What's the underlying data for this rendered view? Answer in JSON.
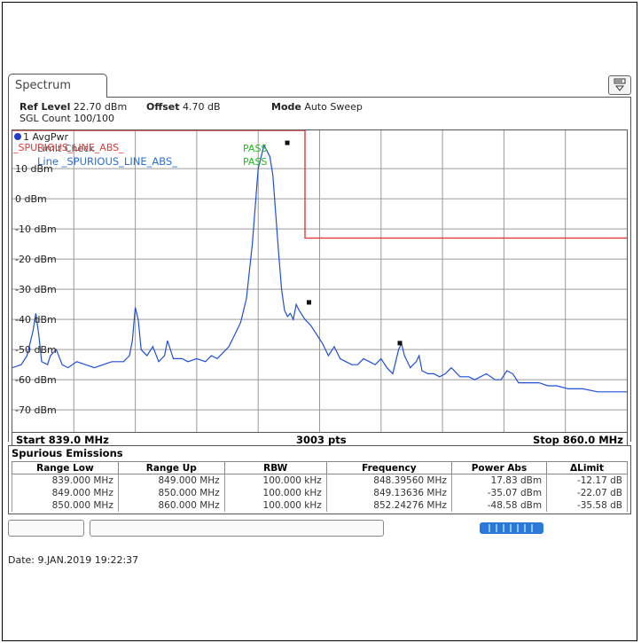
{
  "window": {
    "tab_label": "Spectrum"
  },
  "settings": {
    "ref_level_label": "Ref Level",
    "ref_level_value": "22.70 dBm",
    "offset_label": "Offset",
    "offset_value": "4.70 dB",
    "mode_label": "Mode",
    "mode_value": "Auto Sweep",
    "sgl_count": "SGL Count 100/100"
  },
  "trace": {
    "legend": "1 AvgPwr",
    "color": "#1f4fd8"
  },
  "limit_check": {
    "label": "Limit Check",
    "line_label_red": "_SPURIOUS_LINE_ABS_",
    "line_label_blue": "Line _SPURIOUS_LINE_ABS_",
    "result_1": "PASS",
    "result_2": "PASS",
    "limit_color": "#e23a3a",
    "pass_color": "#22bb22"
  },
  "chart_data": {
    "type": "line",
    "title": "",
    "xlabel": "",
    "ylabel": "",
    "xlim": [
      839.0,
      860.0
    ],
    "ylim": [
      -77.3,
      22.7
    ],
    "y_ticks": [
      10,
      0,
      -10,
      -20,
      -30,
      -40,
      -50,
      -60,
      -70
    ],
    "y_tick_labels": [
      "10 dBm",
      "0 dBm",
      "-10 dBm",
      "-20 dBm",
      "-30 dBm",
      "-40 dBm",
      "-50 dBm",
      "-60 dBm",
      "-70 dBm"
    ],
    "grid": true,
    "series": [
      {
        "x": [
          839.0,
          839.3,
          839.5,
          839.7,
          839.8,
          839.9,
          840.0,
          840.2,
          840.3,
          840.5,
          840.7,
          840.9,
          841.2,
          841.5,
          841.8,
          842.1,
          842.4,
          842.6,
          842.8,
          843.0,
          843.1,
          843.2,
          843.3,
          843.4,
          843.6,
          843.8,
          844.0,
          844.2,
          844.3,
          844.5,
          844.8,
          845.0,
          845.3,
          845.6,
          845.8,
          846.0,
          846.2,
          846.4,
          846.6,
          846.8,
          847.0,
          847.2,
          847.4,
          847.6,
          847.8,
          847.9,
          848.0,
          848.1,
          848.2,
          848.3,
          848.4,
          848.5,
          848.6,
          848.7,
          848.8,
          849.0,
          849.2,
          849.4,
          849.6,
          849.8,
          850.0,
          850.2,
          850.4,
          850.6,
          850.8,
          851.0,
          851.2,
          851.4,
          851.6,
          851.8,
          852.0,
          852.1,
          852.2,
          852.3,
          852.4,
          852.6,
          852.8,
          852.9,
          853.0,
          853.2,
          853.4,
          853.6,
          853.8,
          854.0,
          854.3,
          854.6,
          854.8,
          855.0,
          855.2,
          855.5,
          855.7,
          855.9,
          856.1,
          856.3,
          856.5,
          856.8,
          857.0,
          857.3,
          857.6,
          858.0,
          858.5,
          859.0,
          859.5,
          860.0
        ],
        "y": [
          -56,
          -55,
          -52,
          -44,
          -38,
          -45,
          -54,
          -55,
          -52,
          -50,
          -55,
          -56,
          -54,
          -55,
          -56,
          -55,
          -54,
          -54,
          -54,
          -52,
          -47,
          -36,
          -40,
          -50,
          -52,
          -49,
          -54,
          -52,
          -47,
          -53,
          -53,
          -54,
          -53,
          -54,
          -52,
          -53,
          -51,
          -49,
          -45,
          -41,
          -33,
          -15,
          10,
          17.8,
          14,
          8,
          -5,
          -18,
          -30,
          -37,
          -39,
          -38,
          -40,
          -35,
          -37,
          -40,
          -42,
          -45,
          -48,
          -52,
          -49,
          -53,
          -54,
          -55,
          -55,
          -53,
          -54,
          -55,
          -53,
          -56,
          -58,
          -54,
          -50,
          -48,
          -52,
          -56,
          -54,
          -52,
          -57,
          -58,
          -58,
          -59,
          -58,
          -56,
          -59,
          -59,
          -60,
          -59,
          -58,
          -60,
          -60,
          -57,
          -58,
          -61,
          -61,
          -61,
          -61,
          -62,
          -62,
          -63,
          -63,
          -64,
          -64,
          -64
        ]
      }
    ],
    "markers": [
      {
        "x": 848.3956,
        "y": 17.83
      },
      {
        "x": 849.13636,
        "y": -35.07
      },
      {
        "x": 852.24276,
        "y": -48.58
      }
    ],
    "limit_line": {
      "x": [
        839.0,
        849.0,
        849.0,
        860.0
      ],
      "y": [
        22.7,
        22.7,
        -13.0,
        -13.0
      ]
    },
    "x_start_label": "Start 839.0 MHz",
    "x_center_label": "3003 pts",
    "x_stop_label": "Stop 860.0 MHz"
  },
  "spurious": {
    "title": "Spurious Emissions",
    "columns": [
      "Range Low",
      "Range Up",
      "RBW",
      "Frequency",
      "Power Abs",
      "ΔLimit"
    ],
    "rows": [
      [
        "839.000 MHz",
        "849.000 MHz",
        "100.000 kHz",
        "848.39560 MHz",
        "17.83 dBm",
        "-12.17 dB"
      ],
      [
        "849.000 MHz",
        "850.000 MHz",
        "100.000 kHz",
        "849.13636 MHz",
        "-35.07 dBm",
        "-22.07 dB"
      ],
      [
        "850.000 MHz",
        "860.000 MHz",
        "100.000 kHz",
        "852.24276 MHz",
        "-48.58 dBm",
        "-35.58 dB"
      ]
    ]
  },
  "footer": {
    "date": "Date: 9.JAN.2019  19:22:37"
  }
}
